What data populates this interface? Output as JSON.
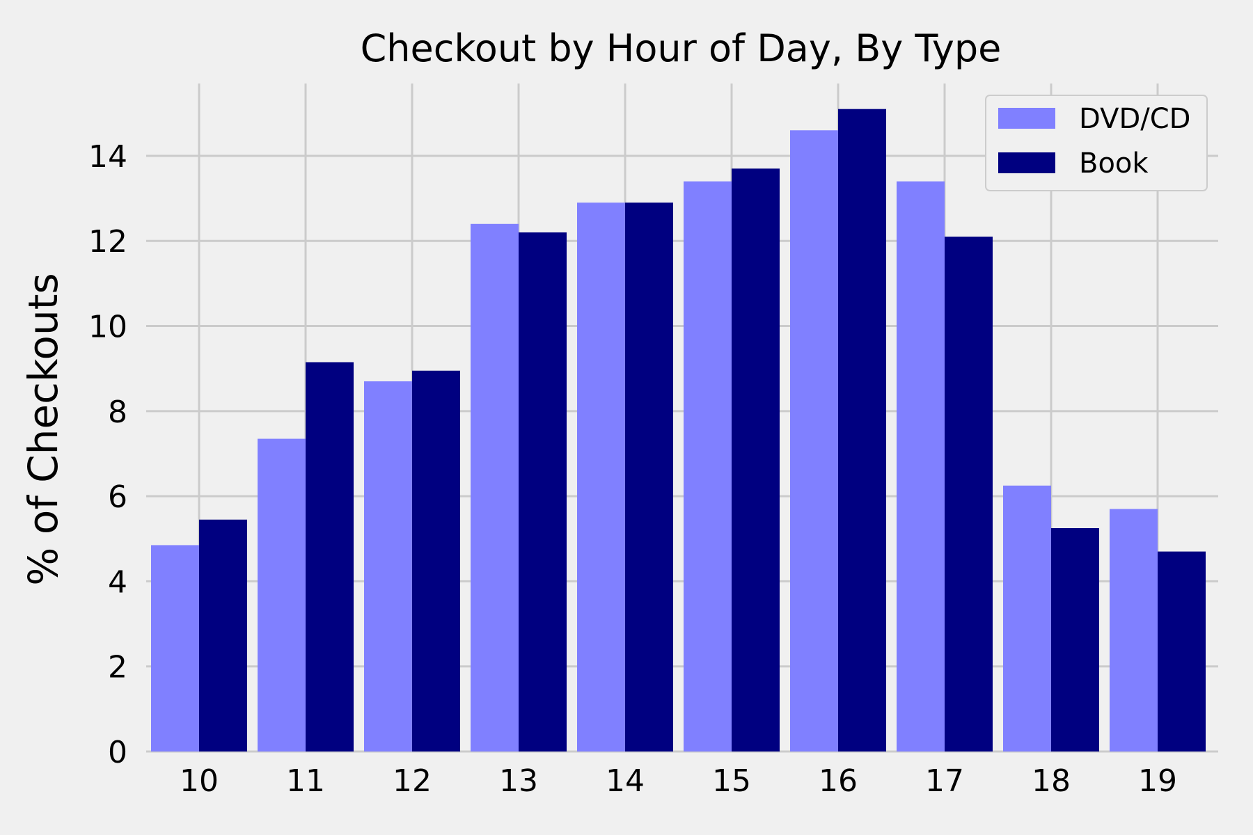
{
  "chart_data": {
    "type": "bar",
    "title": "Checkout by Hour of Day, By Type",
    "xlabel": "",
    "ylabel": "% of Checkouts",
    "categories": [
      "10",
      "11",
      "12",
      "13",
      "14",
      "15",
      "16",
      "17",
      "18",
      "19"
    ],
    "series": [
      {
        "name": "DVD/CD",
        "color": "#8080ff",
        "values": [
          4.85,
          7.35,
          8.7,
          12.4,
          12.9,
          13.4,
          14.6,
          13.4,
          6.25,
          5.7
        ]
      },
      {
        "name": "Book",
        "color": "#000080",
        "values": [
          5.45,
          9.15,
          8.95,
          12.2,
          12.9,
          13.7,
          15.1,
          12.1,
          5.25,
          4.7
        ]
      }
    ],
    "ylim": [
      0,
      15.7
    ],
    "yticks": [
      0,
      2,
      4,
      6,
      8,
      10,
      12,
      14
    ],
    "grid": true,
    "legend_position": "top-right",
    "background": "#f0f0f0"
  }
}
